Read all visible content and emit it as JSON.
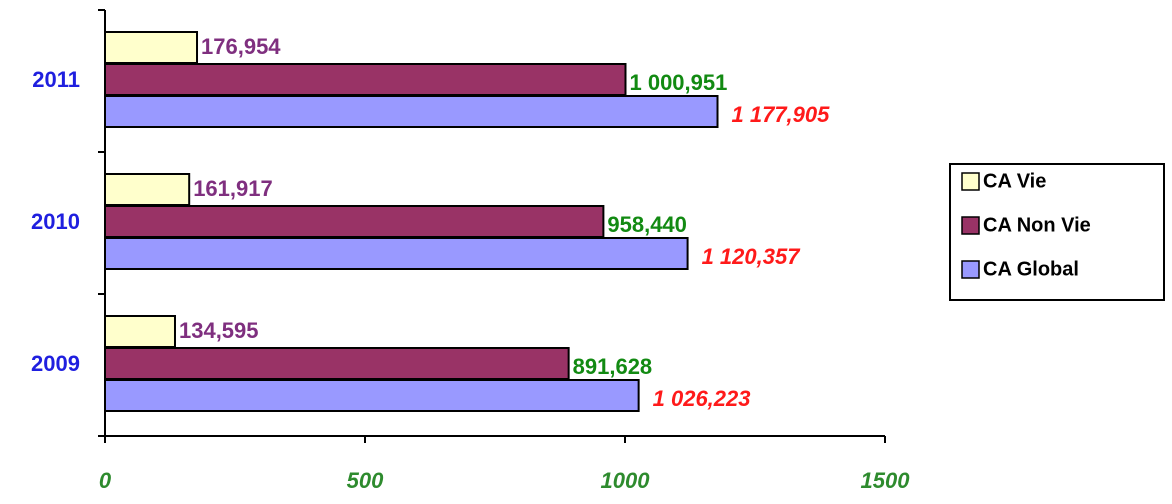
{
  "chart_data": {
    "type": "hbar",
    "categories": [
      "2009",
      "2010",
      "2011"
    ],
    "series": [
      {
        "name": "CA Vie",
        "color": "#ffffcc",
        "label_color": "#7f2f7f",
        "values": [
          134.595,
          161.917,
          176.954
        ],
        "value_labels": [
          "134,595",
          "161,917",
          "176,954"
        ]
      },
      {
        "name": "CA Non Vie",
        "color": "#993366",
        "label_color": "#128a12",
        "values": [
          891.628,
          958.44,
          1000.951
        ],
        "value_labels": [
          "891,628",
          "958,440",
          "1 000,951"
        ]
      },
      {
        "name": "CA Global",
        "color": "#9999ff",
        "label_color": "#ff1a1a",
        "label_italic": true,
        "values": [
          1026.223,
          1120.357,
          1177.905
        ],
        "value_labels": [
          "1 026,223",
          "1 120,357",
          "1 177,905"
        ]
      }
    ],
    "xlim": [
      0,
      1500
    ],
    "xticks": [
      0,
      500,
      1000,
      1500
    ],
    "legend": "right"
  }
}
